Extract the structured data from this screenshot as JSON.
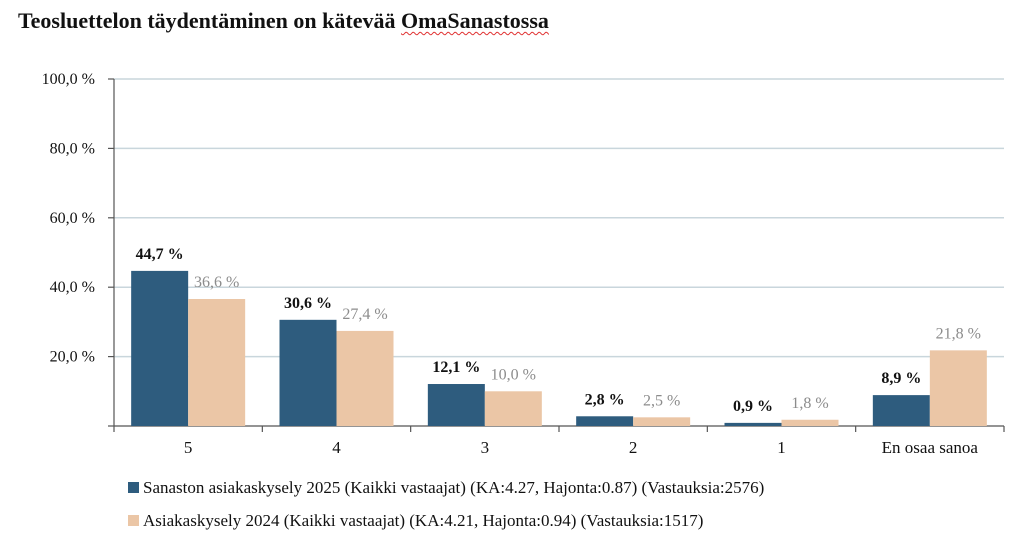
{
  "chart_data": {
    "type": "bar",
    "title_main": "Teosluettelon täydentäminen on kätevää ",
    "title_marked": "OmaSanastossa",
    "categories": [
      "5",
      "4",
      "3",
      "2",
      "1",
      "En osaa sanoa"
    ],
    "series": [
      {
        "name": "Sanaston asiakaskysely 2025 (Kaikki vastaajat) (KA:4.27, Hajonta:0.87) (Vastauksia:2576)",
        "values": [
          44.7,
          30.6,
          12.1,
          2.8,
          0.9,
          8.9
        ],
        "labels": [
          "44,7 %",
          "30,6 %",
          "12,1 %",
          "2,8 %",
          "0,9 %",
          "8,9 %"
        ],
        "color": "#2e5c7e",
        "label_color": "#111111"
      },
      {
        "name": "Asiakaskysely 2024 (Kaikki vastaajat) (KA:4.21, Hajonta:0.94) (Vastauksia:1517)",
        "values": [
          36.6,
          27.4,
          10.0,
          2.5,
          1.8,
          21.8
        ],
        "labels": [
          "36,6 %",
          "27,4 %",
          "10,0 %",
          "2,5 %",
          "1,8 %",
          "21,8 %"
        ],
        "color": "#ebc6a6",
        "label_color": "#8c8c8c"
      }
    ],
    "ylim": [
      0,
      100
    ],
    "yticks": [
      0,
      20,
      40,
      60,
      80,
      100
    ],
    "ytick_labels": [
      "",
      "20,0 %",
      "40,0 %",
      "60,0 %",
      "80,0 %",
      "100,0 %"
    ],
    "grid": true,
    "gridline_color": "#c9d6dc",
    "legend_position": "bottom-left"
  }
}
